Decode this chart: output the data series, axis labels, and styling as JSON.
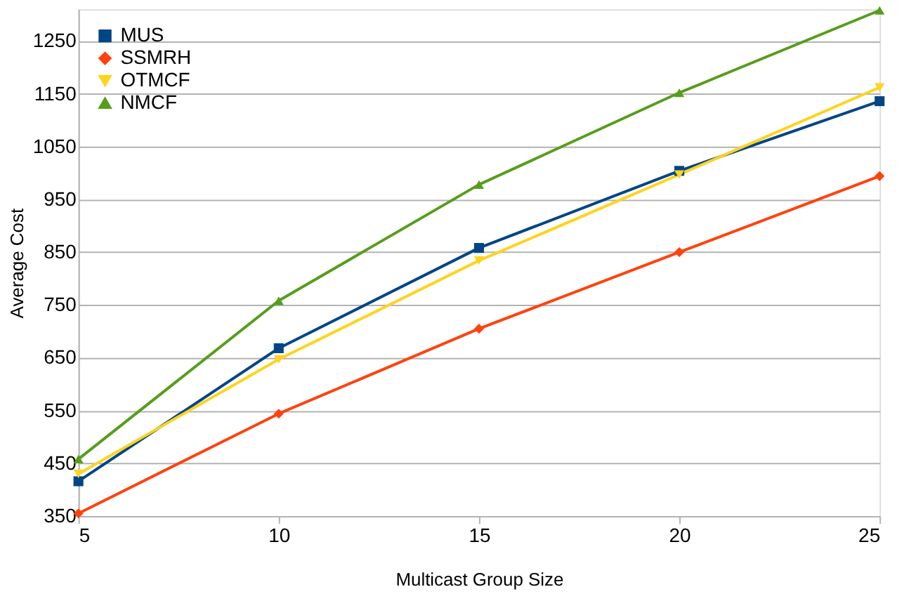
{
  "chart_data": {
    "type": "line",
    "xlabel": "Multicast Group Size",
    "ylabel": "Average Cost",
    "x": [
      5,
      10,
      15,
      20,
      25
    ],
    "series": [
      {
        "name": "MUS",
        "color": "#004586",
        "marker": "square",
        "values": [
          416,
          668,
          858,
          1004,
          1136
        ]
      },
      {
        "name": "SSMRH",
        "color": "#ff420e",
        "marker": "diamond",
        "values": [
          355,
          544,
          705,
          850,
          994
        ]
      },
      {
        "name": "OTMCF",
        "color": "#ffd320",
        "marker": "triangle-down",
        "values": [
          430,
          647,
          834,
          997,
          1162
        ]
      },
      {
        "name": "NMCF",
        "color": "#579d1c",
        "marker": "triangle",
        "values": [
          458,
          758,
          978,
          1152,
          1308
        ]
      }
    ],
    "xlim": [
      5,
      25
    ],
    "xticks": [
      5,
      10,
      15,
      20,
      25
    ],
    "ylim": [
      350,
      1310
    ],
    "yticks": [
      350,
      450,
      550,
      650,
      750,
      850,
      950,
      1050,
      1150,
      1250
    ],
    "grid": "y",
    "legend": "top left",
    "line_style": "solid"
  }
}
